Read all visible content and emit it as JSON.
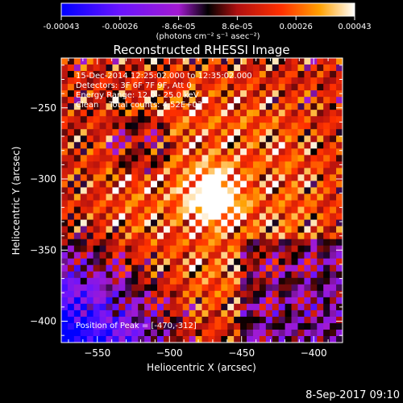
{
  "colorbar": {
    "tick_labels": [
      "-0.00043",
      "-0.00026",
      "-8.6e-05",
      "8.6e-05",
      "0.00026",
      "0.00043"
    ],
    "unit_label": "(photons cm⁻² s⁻¹ asec⁻²)",
    "range": [
      -0.00043,
      0.00043
    ]
  },
  "chart_data": {
    "type": "heatmap",
    "title": "Reconstructed RHESSI Image",
    "xlabel": "Heliocentric X (arcsec)",
    "ylabel": "Heliocentric Y (arcsec)",
    "xlim": [
      -575,
      -380
    ],
    "ylim": [
      -415,
      -215
    ],
    "x_ticks": [
      -550,
      -500,
      -450,
      -400
    ],
    "x_tick_labels": [
      "−550",
      "−500",
      "−450",
      "−400"
    ],
    "y_ticks": [
      -250,
      -300,
      -350,
      -400
    ],
    "y_tick_labels": [
      "−250",
      "−300",
      "−350",
      "−400"
    ],
    "annotations": [
      "15-Dec-2014 12:25:02.000 to 12:35:02.000",
      "Detectors: 3F 6F 7F 9F, Att 0",
      "Energy Range: 12.0 - 25.0 keV",
      "Clean    Total counts: 4.52E+03"
    ],
    "peak_label": "Position of Peak = [-470,-312]",
    "peak": [
      -470,
      -312
    ]
  },
  "footer": {
    "timestamp": "8-Sep-2017 09:10"
  }
}
